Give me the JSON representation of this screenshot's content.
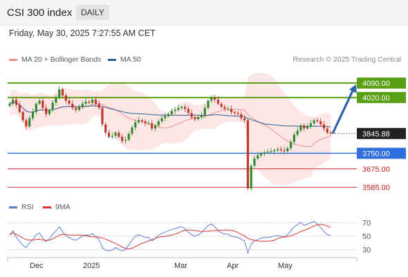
{
  "header": {
    "title": "CSI 300 index",
    "timeframe": "DAILY"
  },
  "datetime": "Friday, May 30, 2025 7:27:55 AM CET",
  "legend_main": [
    {
      "label": "MA 20 + Bollinger Bands",
      "color": "#f08f8f"
    },
    {
      "label": "MA 50",
      "color": "#2d5b95"
    }
  ],
  "credit": "Research © 2025 Trading Central",
  "legend_rsi": [
    {
      "label": "RSI",
      "color": "#5b7fd6"
    },
    {
      "label": "9MA",
      "color": "#e03030"
    }
  ],
  "chart_data": {
    "type": "candlestick",
    "x_labels": [
      "Dec",
      "2025",
      "Mar",
      "Apr",
      "May"
    ],
    "price_range": [
      3520,
      4130
    ],
    "current_price": {
      "value": 3845.88,
      "label": "3845.88"
    },
    "levels": [
      {
        "label": "4090.00",
        "value": 4090,
        "kind": "resistance",
        "color": "#5aa014"
      },
      {
        "label": "4020.00",
        "value": 4020,
        "kind": "resistance",
        "color": "#5aa014"
      },
      {
        "label": "3750.00",
        "value": 3750,
        "kind": "pivot",
        "color": "#2f6fe0"
      },
      {
        "label": "3675.00",
        "value": 3675,
        "kind": "support",
        "color": "#cc2020"
      },
      {
        "label": "3585.00",
        "value": 3585,
        "kind": "support",
        "color": "#cc2020"
      }
    ],
    "projection": {
      "from": 3845.88,
      "to": 4090
    },
    "rsi_levels": [
      {
        "label": "70",
        "value": 70
      },
      {
        "label": "50",
        "value": 50
      },
      {
        "label": "30",
        "value": 30
      }
    ],
    "rsi_range": [
      20,
      80
    ],
    "closes": [
      3990,
      4010,
      3985,
      3950,
      3910,
      3880,
      3920,
      3950,
      3990,
      4005,
      3970,
      3940,
      3960,
      3995,
      4020,
      4060,
      4030,
      4005,
      3990,
      3970,
      3960,
      3975,
      3990,
      4000,
      3995,
      4010,
      3990,
      3970,
      3890,
      3850,
      3830,
      3835,
      3850,
      3830,
      3810,
      3815,
      3845,
      3875,
      3900,
      3910,
      3905,
      3895,
      3895,
      3870,
      3885,
      3905,
      3920,
      3930,
      3940,
      3955,
      3960,
      3970,
      3975,
      3965,
      3945,
      3925,
      3915,
      3925,
      3935,
      3970,
      4005,
      4020,
      4010,
      3990,
      3975,
      3965,
      3965,
      3950,
      3945,
      3940,
      3920,
      3910,
      3580,
      3690,
      3725,
      3740,
      3750,
      3755,
      3758,
      3760,
      3765,
      3770,
      3765,
      3760,
      3775,
      3805,
      3840,
      3860,
      3885,
      3870,
      3880,
      3895,
      3910,
      3905,
      3890,
      3870,
      3850,
      3845.88
    ],
    "rsi": [
      52,
      58,
      48,
      42,
      36,
      33,
      40,
      45,
      52,
      55,
      47,
      42,
      46,
      53,
      58,
      64,
      57,
      50,
      48,
      45,
      44,
      47,
      50,
      52,
      51,
      54,
      49,
      45,
      33,
      29,
      28,
      29,
      33,
      30,
      28,
      30,
      37,
      44,
      50,
      52,
      50,
      48,
      48,
      43,
      47,
      51,
      54,
      56,
      58,
      60,
      61,
      63,
      64,
      61,
      56,
      52,
      50,
      52,
      55,
      61,
      66,
      68,
      64,
      58,
      55,
      53,
      53,
      50,
      49,
      48,
      45,
      43,
      25,
      38,
      43,
      45,
      47,
      48,
      48,
      49,
      50,
      51,
      50,
      49,
      52,
      58,
      64,
      67,
      71,
      66,
      68,
      70,
      72,
      68,
      63,
      57,
      52,
      51
    ]
  }
}
